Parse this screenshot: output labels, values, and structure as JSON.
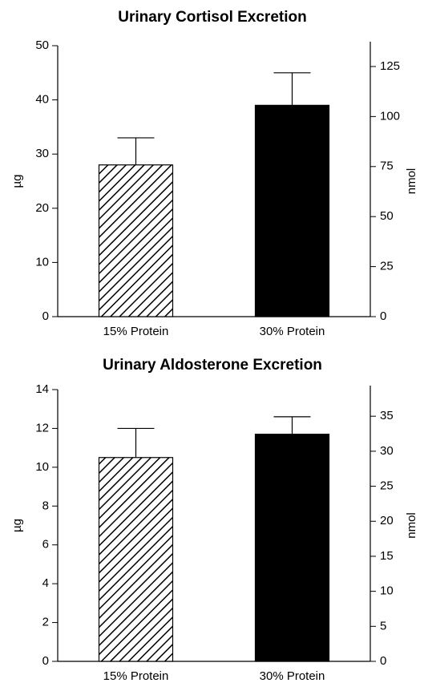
{
  "chart_data": [
    {
      "type": "bar",
      "title": "Urinary Cortisol Excretion",
      "y_label": "µg",
      "y2_label": "nmol",
      "categories": [
        "15% Protein",
        "30% Protein"
      ],
      "values": [
        28,
        39
      ],
      "errors": [
        5,
        6
      ],
      "colors": [
        "#000000",
        "#000000"
      ],
      "hatch": [
        true,
        false
      ],
      "ylim": [
        0,
        50
      ],
      "yticks": [
        0,
        10,
        20,
        30,
        40,
        50
      ],
      "y2lim": [
        0,
        135.4
      ],
      "y2ticks": [
        0,
        25,
        50,
        75,
        100,
        125
      ]
    },
    {
      "type": "bar",
      "title": "Urinary Aldosterone Excretion",
      "y_label": "µg",
      "y2_label": "nmol",
      "categories": [
        "15% Protein",
        "30% Protein"
      ],
      "values": [
        10.5,
        11.7
      ],
      "errors": [
        1.5,
        0.9
      ],
      "colors": [
        "#000000",
        "#000000"
      ],
      "hatch": [
        true,
        false
      ],
      "ylim": [
        0,
        14
      ],
      "yticks": [
        0,
        2,
        4,
        6,
        8,
        10,
        12,
        14
      ],
      "y2lim": [
        0,
        38.8
      ],
      "y2ticks": [
        0,
        5,
        10,
        15,
        20,
        25,
        30,
        35
      ]
    }
  ]
}
